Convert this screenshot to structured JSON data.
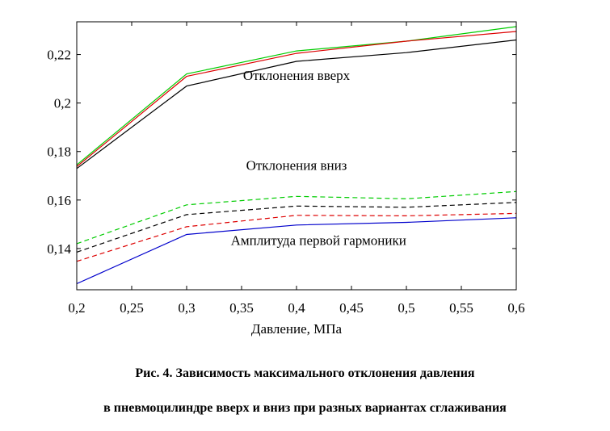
{
  "chart_data": {
    "type": "line",
    "xlabel": "Давление, МПа",
    "ylabel": "",
    "xlim": [
      0.2,
      0.6
    ],
    "ylim": [
      0.123,
      0.2335
    ],
    "xticks": [
      0.2,
      0.25,
      0.3,
      0.35,
      0.4,
      0.45,
      0.5,
      0.55,
      0.6
    ],
    "xtick_labels": [
      "0,2",
      "0,25",
      "0,3",
      "0,35",
      "0,4",
      "0,45",
      "0,5",
      "0,55",
      "0,6"
    ],
    "yticks": [
      0.14,
      0.16,
      0.18,
      0.2,
      0.22
    ],
    "ytick_labels": [
      "0,14",
      "0,16",
      "0,18",
      "0,2",
      "0,22"
    ],
    "grid": false,
    "x": [
      0.2,
      0.3,
      0.4,
      0.5,
      0.6
    ],
    "series": [
      {
        "color": "#00cc00",
        "dash": false,
        "values": [
          0.1745,
          0.212,
          0.2215,
          0.2255,
          0.2315
        ]
      },
      {
        "color": "#dd0000",
        "dash": false,
        "values": [
          0.1738,
          0.211,
          0.2205,
          0.2255,
          0.2295
        ]
      },
      {
        "color": "#000000",
        "dash": false,
        "values": [
          0.173,
          0.207,
          0.2172,
          0.2208,
          0.226
        ]
      },
      {
        "color": "#00cc00",
        "dash": true,
        "values": [
          0.142,
          0.158,
          0.1615,
          0.1605,
          0.1635
        ]
      },
      {
        "color": "#000000",
        "dash": true,
        "values": [
          0.1385,
          0.154,
          0.1575,
          0.157,
          0.159
        ]
      },
      {
        "color": "#dd0000",
        "dash": true,
        "values": [
          0.1347,
          0.149,
          0.1537,
          0.1535,
          0.1545
        ]
      },
      {
        "color": "#0000cc",
        "dash": false,
        "values": [
          0.1255,
          0.1458,
          0.1497,
          0.1508,
          0.1527
        ]
      }
    ],
    "annotations": [
      {
        "text": "Отклонения вверх",
        "x": 0.4,
        "y": 0.2095
      },
      {
        "text": "Отклонения вниз",
        "x": 0.4,
        "y": 0.1725
      },
      {
        "text": "Амплитуда первой гармоники",
        "x": 0.42,
        "y": 0.1415
      }
    ]
  },
  "caption": {
    "line1": "Рис. 4.  Зависимость максимального отклонения давления",
    "line2": "в пневмоцилиндре вверх и вниз при разных вариантах сглаживания"
  }
}
